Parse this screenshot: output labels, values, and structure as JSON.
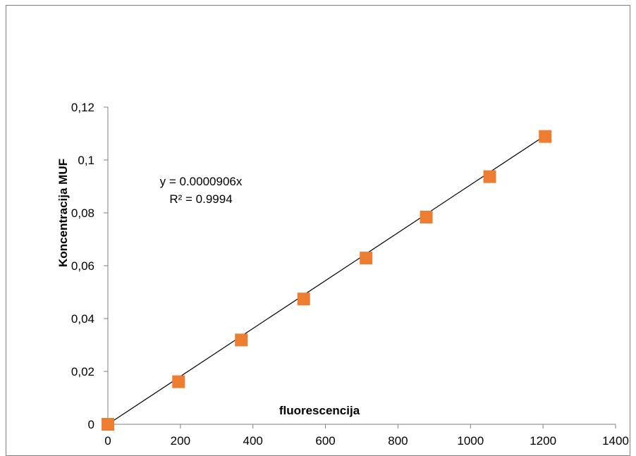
{
  "chart_data": {
    "type": "scatter",
    "title": "",
    "xlabel": "fluorescencija",
    "ylabel": "Koncentracija MUF",
    "xlim": [
      0,
      1400
    ],
    "ylim": [
      0,
      0.12
    ],
    "x_ticks": [
      "0",
      "200",
      "400",
      "600",
      "800",
      "1000",
      "1200",
      "1400"
    ],
    "y_ticks": [
      "0",
      "0,02",
      "0,04",
      "0,06",
      "0,08",
      "0,1",
      "0,12"
    ],
    "grid": false,
    "legend": "none",
    "series": [
      {
        "x": [
          0,
          195,
          368,
          540,
          712,
          878,
          1053,
          1206
        ],
        "y": [
          0,
          0.0161,
          0.0319,
          0.0474,
          0.0629,
          0.0784,
          0.0937,
          0.1089
        ]
      }
    ],
    "trendline": {
      "slope": 9.06e-05,
      "x_range": [
        0,
        1206
      ],
      "equation": "y = 0.0000906x",
      "r_squared": "R² = 0.9994"
    },
    "colors": {
      "marker": "#ED7D31",
      "trendline": "#000000",
      "axis": "#7f7f7f"
    }
  }
}
